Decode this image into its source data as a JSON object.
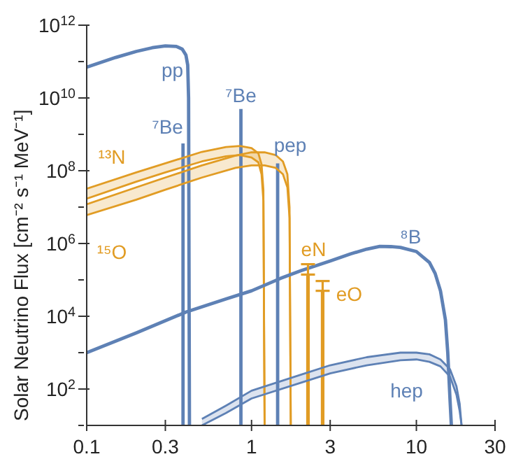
{
  "chart_data": {
    "type": "line",
    "ylabel": "Solar Neutrino Flux  [cm⁻² s⁻¹ MeV⁻¹]",
    "log": "xy",
    "xlim": [
      0.1,
      30
    ],
    "xticks": [
      {
        "value": 0.1,
        "label": "0.1"
      },
      {
        "value": 0.3,
        "label": "0.3"
      },
      1,
      3,
      10,
      30
    ],
    "ylim": [
      10,
      1000000000000
    ],
    "yticks": [
      {
        "value": 10,
        "label": null
      },
      {
        "value": 100,
        "label": "10$^{2}$"
      },
      {
        "value": 1000,
        "label": null
      },
      {
        "value": 10000,
        "label": "10$^{4}$"
      },
      {
        "value": 100000,
        "label": null
      },
      {
        "value": 1000000,
        "label": "10$^{6}$"
      },
      {
        "value": 10000000,
        "label": null
      },
      {
        "value": 100000000,
        "label": "10$^{8}$"
      },
      {
        "value": 1000000000,
        "label": null
      },
      {
        "value": 10000000000,
        "label": "10$^{10}$"
      },
      {
        "value": 100000000000,
        "label": null
      },
      {
        "value": 1000000000000,
        "label": "10$^{12}$"
      }
    ],
    "grid": false,
    "legend": false,
    "marker": "none",
    "line_style": "solid",
    "series": [
      {
        "name": "pp",
        "color": "#5e81b5",
        "x": [
          0.1,
          0.15,
          0.2,
          0.25,
          0.3,
          0.35,
          0.38,
          0.4,
          0.41,
          0.415,
          0.42
        ],
        "values": [
          70000000000,
          130000000000,
          190000000000,
          240000000000,
          270000000000,
          260000000000,
          220000000000,
          150000000000,
          80000000000,
          10000000000,
          10
        ]
      },
      {
        "name": "⁷Be",
        "color": "#5e81b5",
        "x": [
          0.384,
          0.384
        ],
        "values": [
          10,
          560000000
        ]
      },
      {
        "name": "⁷Be",
        "color": "#5e81b5",
        "x": [
          0.862,
          0.862
        ],
        "values": [
          10,
          5000000000
        ]
      },
      {
        "name": "pep",
        "color": "#5e81b5",
        "x": [
          1.44,
          1.44
        ],
        "values": [
          10,
          160000000
        ]
      },
      {
        "name": "¹³N",
        "color": "#e19c24",
        "x": [
          0.1,
          0.2,
          0.3,
          0.5,
          0.7,
          0.85,
          1.0,
          1.1,
          1.15,
          1.18,
          1.2
        ],
        "values": [
          32000000,
          90000000,
          160000000,
          330000000,
          450000000,
          480000000,
          420000000,
          300000000,
          150000000,
          30000000,
          10
        ],
        "upper": [
          32000000,
          90000000,
          160000000,
          330000000,
          450000000,
          480000000,
          420000000,
          300000000,
          150000000,
          30000000,
          10
        ],
        "lower": [
          17000000,
          50000000,
          90000000,
          180000000,
          250000000,
          270000000,
          230000000,
          170000000,
          80000000,
          15000000,
          10
        ]
      },
      {
        "color": "#e19c24",
        "x": [
          0.1,
          0.2,
          0.3,
          0.5,
          0.7,
          0.85,
          1.0,
          1.1,
          1.15,
          1.18,
          1.2
        ],
        "values": [
          17000000,
          50000000,
          90000000,
          180000000,
          250000000,
          270000000,
          230000000,
          170000000,
          80000000,
          15000000,
          10
        ]
      },
      {
        "name": "¹⁵O",
        "color": "#e19c24",
        "x": [
          0.1,
          0.2,
          0.3,
          0.5,
          0.8,
          1.0,
          1.2,
          1.4,
          1.55,
          1.65,
          1.7,
          1.73
        ],
        "values": [
          12000000,
          35000000,
          65000000,
          140000000,
          260000000,
          320000000,
          320000000,
          270000000,
          180000000,
          80000000,
          10000000,
          10
        ],
        "upper": [
          12000000,
          35000000,
          65000000,
          140000000,
          260000000,
          320000000,
          320000000,
          270000000,
          180000000,
          80000000,
          10000000,
          10
        ],
        "lower": [
          6000000,
          16000000,
          30000000,
          65000000,
          120000000,
          140000000,
          140000000,
          120000000,
          80000000,
          35000000,
          5000000,
          10
        ]
      },
      {
        "color": "#e19c24",
        "x": [
          0.1,
          0.2,
          0.3,
          0.5,
          0.8,
          1.0,
          1.2,
          1.4,
          1.55,
          1.65,
          1.7,
          1.73
        ],
        "values": [
          6000000,
          16000000,
          30000000,
          65000000,
          120000000,
          140000000,
          140000000,
          120000000,
          80000000,
          35000000,
          5000000,
          10
        ]
      },
      {
        "name": "⁸B",
        "color": "#5e81b5",
        "x": [
          0.1,
          0.2,
          0.4,
          0.7,
          1,
          1.5,
          2,
          3,
          4,
          5,
          6,
          7,
          8,
          10,
          12,
          13,
          14,
          15,
          15.5,
          16,
          16.3
        ],
        "values": [
          1000,
          3500,
          13000,
          30000,
          50000,
          110000,
          180000,
          330000,
          520000,
          700000,
          830000,
          820000,
          780000,
          600000,
          300000,
          150000,
          50000,
          8000,
          1000,
          50,
          10
        ]
      },
      {
        "name": "eN",
        "color": "#e19c24",
        "x": [
          2.2,
          2.2
        ],
        "values": [
          10,
          140000
        ],
        "errors": [
          null,
          [
            140000,
            270000
          ]
        ]
      },
      {
        "name": "eO",
        "color": "#e19c24",
        "x": [
          2.7,
          2.7
        ],
        "values": [
          10,
          50000
        ],
        "errors": [
          null,
          [
            50000,
            93000
          ]
        ]
      },
      {
        "name": "hep",
        "color": "#5e81b5",
        "x": [
          0.5,
          0.7,
          1,
          2,
          3,
          5,
          8,
          10,
          12,
          14,
          16,
          17.5,
          18.3,
          18.8
        ],
        "values": [
          15,
          35,
          90,
          250,
          450,
          750,
          1000,
          1000,
          900,
          650,
          350,
          120,
          40,
          10
        ],
        "upper": [
          15,
          35,
          90,
          250,
          450,
          750,
          1000,
          1000,
          900,
          650,
          350,
          120,
          40,
          10
        ],
        "lower": [
          10,
          22,
          55,
          150,
          270,
          450,
          620,
          650,
          560,
          420,
          220,
          70,
          25,
          10
        ]
      },
      {
        "color": "#5e81b5",
        "x": [
          0.5,
          0.7,
          1,
          2,
          3,
          5,
          8,
          10,
          12,
          14,
          16,
          17.5,
          18.3,
          18.8
        ],
        "values": [
          10,
          22,
          55,
          150,
          270,
          450,
          620,
          650,
          560,
          420,
          220,
          70,
          25,
          10
        ]
      }
    ]
  }
}
